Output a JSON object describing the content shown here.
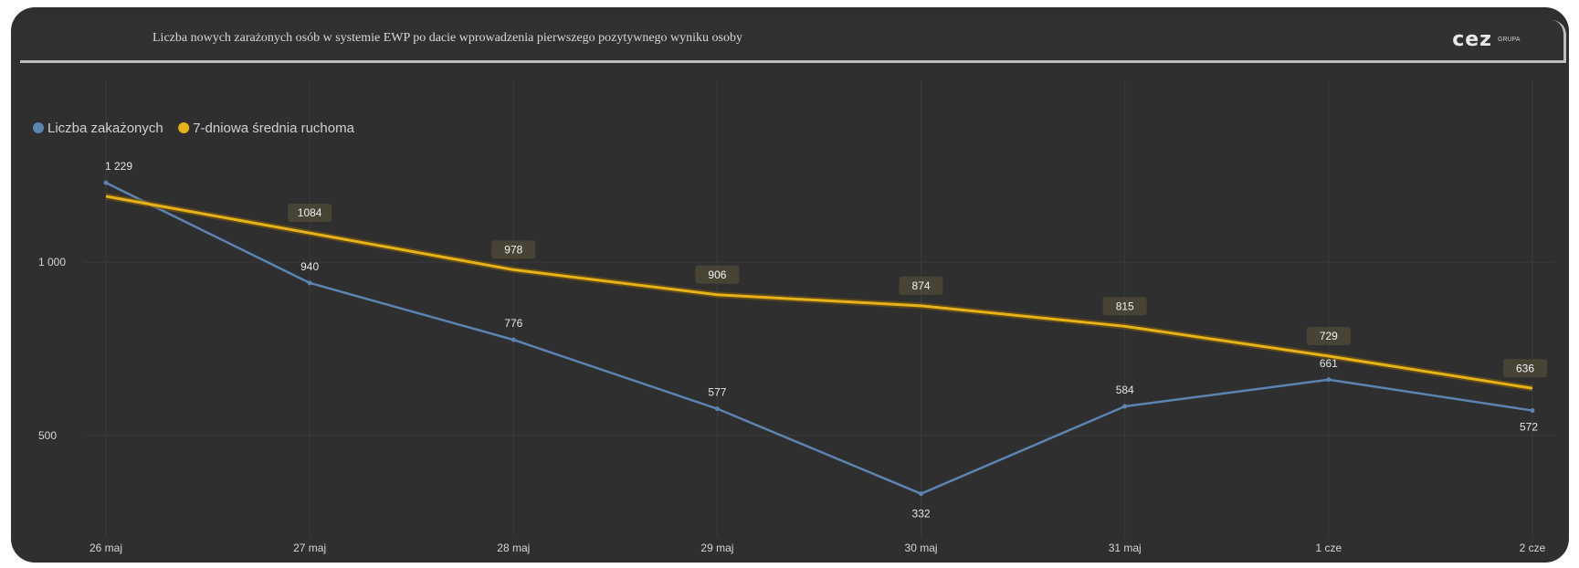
{
  "header": {
    "title": "Liczba nowych zarażonych osób w systemie EWP po dacie wprowadzenia pierwszego pozytywnego wyniku osoby",
    "logo_text": "cez",
    "logo_subtext": "GRUPA"
  },
  "colors": {
    "background": "#2f2f2f",
    "series_infected": "#5b84b0",
    "series_average": "#e8b318",
    "label_box": "#4a4737"
  },
  "chart_data": {
    "type": "line",
    "title": "Liczba nowych zarażonych osób w systemie EWP po dacie wprowadzenia pierwszego pozytywnego wyniku osoby",
    "categories": [
      "26 maj",
      "27 maj",
      "28 maj",
      "29 maj",
      "30 maj",
      "31 maj",
      "1 cze",
      "2 cze"
    ],
    "series": [
      {
        "name": "Liczba zakażonych",
        "values": [
          1229,
          940,
          776,
          577,
          332,
          584,
          661,
          572
        ],
        "color": "#5b84b0"
      },
      {
        "name": "7-dniowa średnia ruchoma",
        "values": [
          1190,
          1084,
          978,
          906,
          874,
          815,
          729,
          636
        ],
        "color": "#e8b318"
      }
    ],
    "value_labels": {
      "Liczba zakażonych": [
        "1 229",
        "940",
        "776",
        "577",
        "332",
        "584",
        "661",
        "572"
      ],
      "7-dniowa średnia ruchoma": [
        "",
        "1084",
        "978",
        "906",
        "874",
        "815",
        "729",
        "636"
      ]
    },
    "yticks": [
      500,
      1000
    ],
    "ytick_labels": [
      "500",
      "1 000"
    ],
    "ylim": [
      260,
      1340
    ],
    "grid": true,
    "legend_position": "top-left"
  }
}
